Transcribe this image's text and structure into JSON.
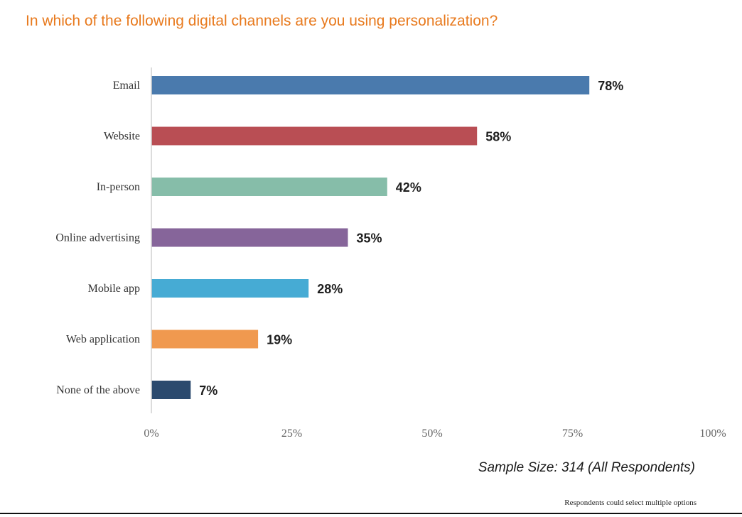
{
  "title": "In which of the following digital channels are you using personalization?",
  "sample_size": "Sample Size: 314 (All Respondents)",
  "footnote": "Respondents could select multiple options",
  "chart_data": {
    "type": "bar",
    "orientation": "horizontal",
    "categories": [
      "Email",
      "Website",
      "In-person",
      "Online advertising",
      "Mobile app",
      "Web application",
      "None of the above"
    ],
    "values": [
      78,
      58,
      42,
      35,
      28,
      19,
      7
    ],
    "value_labels": [
      "78%",
      "58%",
      "42%",
      "35%",
      "28%",
      "19%",
      "7%"
    ],
    "colors": [
      "#4a7aad",
      "#b94e54",
      "#86bda9",
      "#86659a",
      "#46abd4",
      "#f0994f",
      "#2b4a6e"
    ],
    "xlim": [
      0,
      100
    ],
    "x_ticks": [
      0,
      25,
      50,
      75,
      100
    ],
    "x_tick_labels": [
      "0%",
      "25%",
      "50%",
      "75%",
      "100%"
    ],
    "title": "In which of the following digital channels are you using personalization?",
    "xlabel": "",
    "ylabel": "",
    "grid": false,
    "legend": "none"
  }
}
